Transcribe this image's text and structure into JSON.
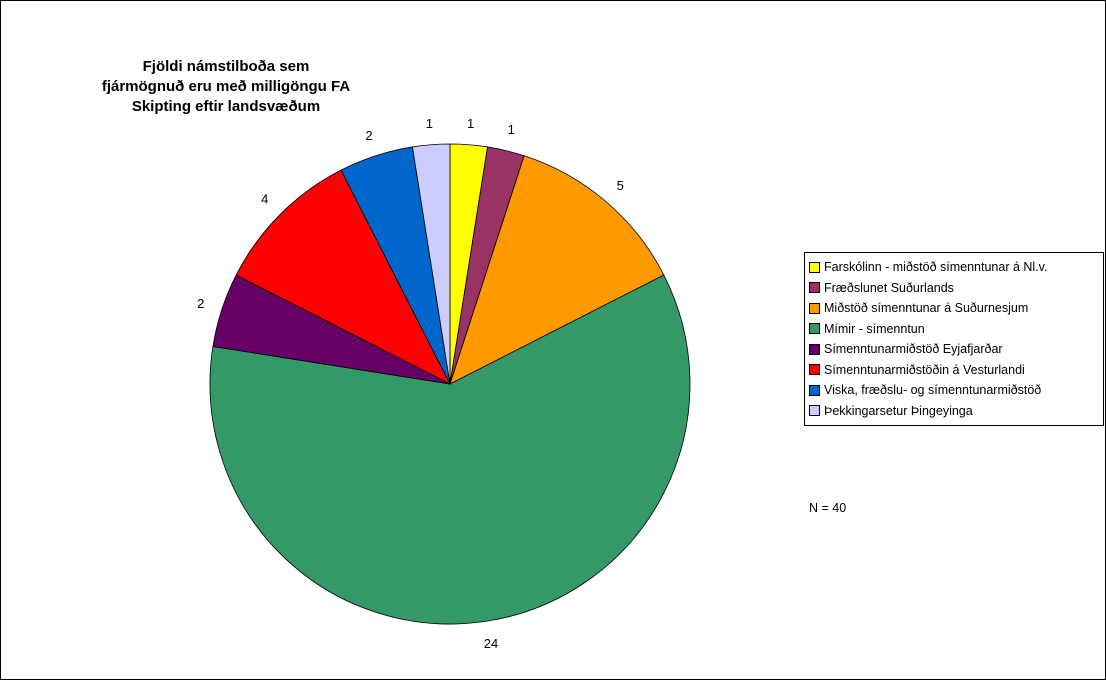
{
  "chart_data": {
    "type": "pie",
    "title_lines": [
      "Fjöldi námstilboða sem",
      "fjármögnuð eru með milligöngu FA",
      "Skipting eftir landsvæðum"
    ],
    "slices": [
      {
        "label": "Farskólinn - miðstöð símenntunar á Nl.v.",
        "value": 1,
        "color": "#FFFF00"
      },
      {
        "label": "Fræðslunet Suðurlands",
        "value": 1,
        "color": "#993366"
      },
      {
        "label": "Miðstöð símenntunar á Suðurnesjum",
        "value": 5,
        "color": "#FF9900"
      },
      {
        "label": "Mímir - símenntun",
        "value": 24,
        "color": "#339966"
      },
      {
        "label": "Símenntunarmiðstöð Eyjafjarðar",
        "value": 2,
        "color": "#660066"
      },
      {
        "label": "Símenntunarmiðstöðin á Vesturlandi",
        "value": 4,
        "color": "#FF0000"
      },
      {
        "label": "Viska, fræðslu- og símenntunarmiðstöð",
        "value": 2,
        "color": "#0066CC"
      },
      {
        "label": "Þekkingarsetur Þingeyinga",
        "value": 1,
        "color": "#CCCCFF"
      }
    ],
    "data_labels": [
      "1",
      "1",
      "5",
      "24",
      "2",
      "4",
      "2",
      "1"
    ],
    "legend_position": "right",
    "note": "N = 40"
  }
}
